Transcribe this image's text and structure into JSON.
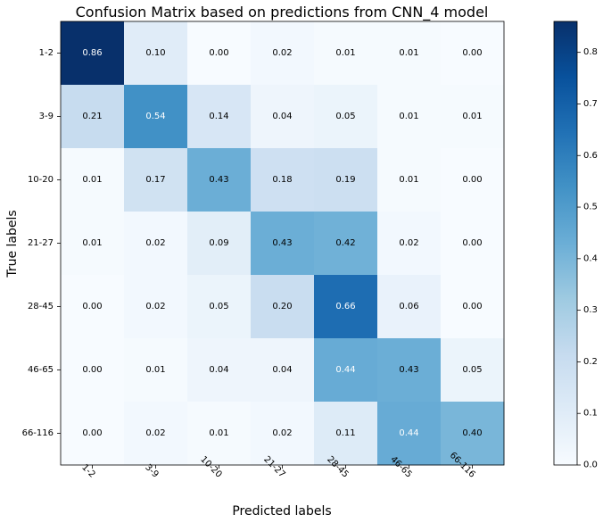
{
  "chart_data": {
    "type": "heatmap",
    "title": "Confusion Matrix based on predictions from CNN_4 model",
    "xlabel": "Predicted labels",
    "ylabel": "True labels",
    "x_categories": [
      "1-2",
      "3-9",
      "10-20",
      "21-27",
      "28-45",
      "46-65",
      "66-116"
    ],
    "y_categories": [
      "1-2",
      "3-9",
      "10-20",
      "21-27",
      "28-45",
      "46-65",
      "66-116"
    ],
    "values": [
      [
        0.86,
        0.1,
        0.0,
        0.02,
        0.01,
        0.01,
        0.0
      ],
      [
        0.21,
        0.54,
        0.14,
        0.04,
        0.05,
        0.01,
        0.01
      ],
      [
        0.01,
        0.17,
        0.43,
        0.18,
        0.19,
        0.01,
        0.0
      ],
      [
        0.01,
        0.02,
        0.09,
        0.43,
        0.42,
        0.02,
        0.0
      ],
      [
        0.0,
        0.02,
        0.05,
        0.2,
        0.66,
        0.06,
        0.0
      ],
      [
        0.0,
        0.01,
        0.04,
        0.04,
        0.44,
        0.43,
        0.05
      ],
      [
        0.0,
        0.02,
        0.01,
        0.02,
        0.11,
        0.44,
        0.4
      ]
    ],
    "value_format": "0.00",
    "colormap": "Blues",
    "colorbar": {
      "min": 0.0,
      "max": 0.86,
      "ticks": [
        0.0,
        0.1,
        0.2,
        0.3,
        0.4,
        0.5,
        0.6,
        0.7,
        0.8
      ],
      "tick_labels": [
        "0.0",
        "0.1",
        "0.2",
        "0.3",
        "0.4",
        "0.5",
        "0.6",
        "0.7",
        "0.8"
      ]
    },
    "x_tick_rotation_deg": 45,
    "grid": false
  }
}
